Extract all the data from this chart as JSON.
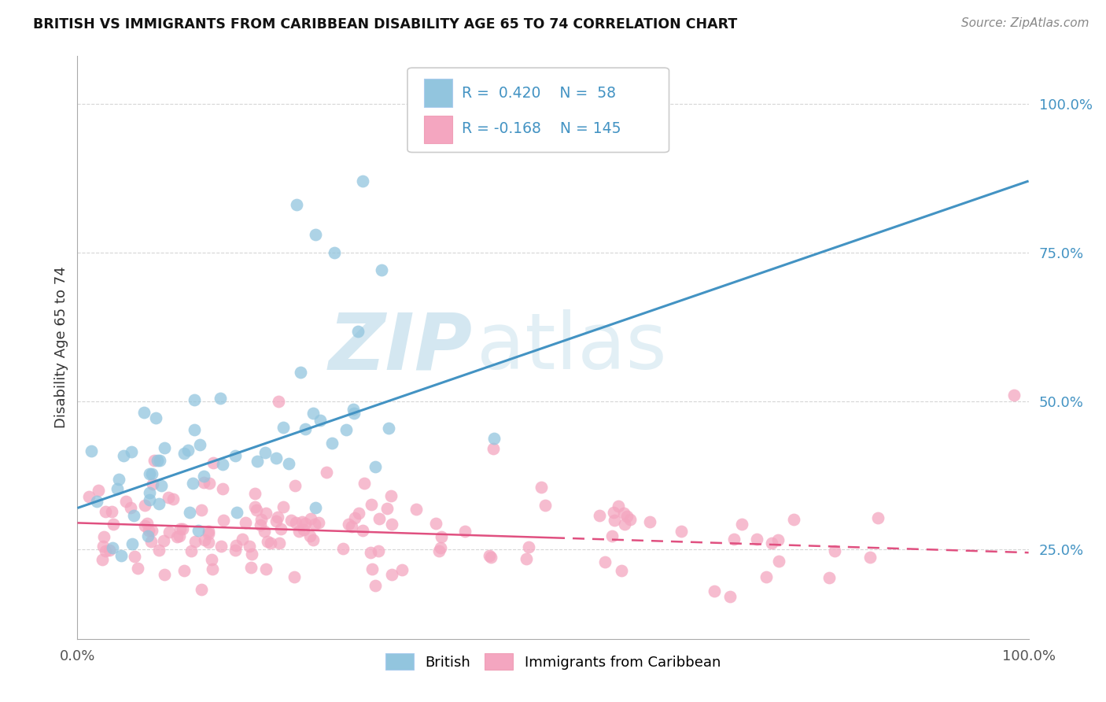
{
  "title": "BRITISH VS IMMIGRANTS FROM CARIBBEAN DISABILITY AGE 65 TO 74 CORRELATION CHART",
  "source": "Source: ZipAtlas.com",
  "ylabel": "Disability Age 65 to 74",
  "xlim": [
    0.0,
    1.0
  ],
  "ylim": [
    0.1,
    1.08
  ],
  "x_tick_labels": [
    "0.0%",
    "100.0%"
  ],
  "y_tick_labels": [
    "25.0%",
    "50.0%",
    "75.0%",
    "100.0%"
  ],
  "y_tick_positions": [
    0.25,
    0.5,
    0.75,
    1.0
  ],
  "legend_british_R": 0.42,
  "legend_british_N": 58,
  "legend_caribbean_R": -0.168,
  "legend_caribbean_N": 145,
  "british_color": "#92c5de",
  "caribbean_color": "#f4a6c0",
  "british_line_color": "#4393c3",
  "caribbean_line_color": "#e05080",
  "watermark_color": "#b8d8e8",
  "background_color": "#ffffff",
  "grid_color": "#cccccc",
  "brit_line_y0": 0.32,
  "brit_line_y1": 0.87,
  "carib_line_y0": 0.295,
  "carib_line_y1": 0.245
}
